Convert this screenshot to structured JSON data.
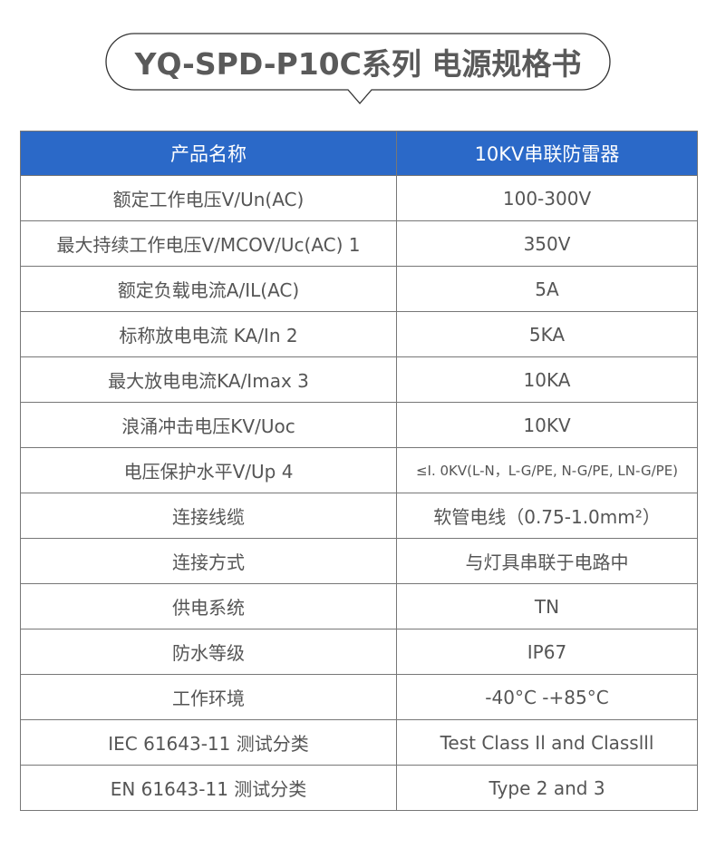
{
  "title": "YQ-SPD-P10C系列  电源规格书",
  "colors": {
    "header_bg": "#2b69c8",
    "text": "#555555",
    "border": "#777777"
  },
  "table": {
    "header": [
      "产品名称",
      "10KV串联防雷器"
    ],
    "rows": [
      [
        "额定工作电压V/Un(AC)",
        "100-300V"
      ],
      [
        "最大持续工作电压V/MCOV/Uc(AC) 1",
        "350V"
      ],
      [
        "额定负载电流A/IL(AC)",
        "5A"
      ],
      [
        "标称放电电流 KA/In  2",
        "5KA"
      ],
      [
        "最大放电电流KA/Imax  3",
        "10KA"
      ],
      [
        "浪涌冲击电压KV/Uoc",
        "10KV"
      ],
      [
        "电压保护水平V/Up  4",
        "≤I. 0KV(L-N，L-G/PE, N-G/PE, LN-G/PE)"
      ],
      [
        "连接线缆",
        "软管电线（0.75-1.0mm²）"
      ],
      [
        "连接方式",
        "与灯具串联于电路中"
      ],
      [
        "供电系统",
        "TN"
      ],
      [
        "防水等级",
        "IP67"
      ],
      [
        "工作环境",
        "-40°C -+85°C"
      ],
      [
        "IEC  61643-11  测试分类",
        "Test Class Il and Classlll"
      ],
      [
        "EN  61643-11  测试分类",
        "Type 2 and 3"
      ]
    ]
  }
}
